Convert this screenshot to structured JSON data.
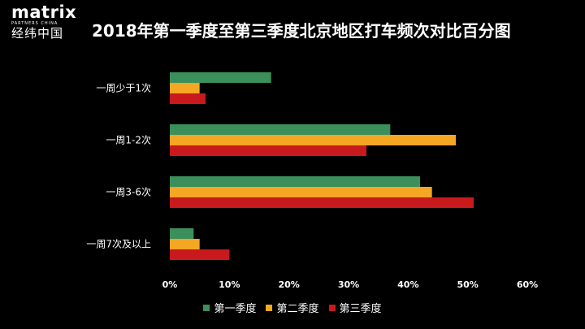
{
  "logo": {
    "word": "matrix",
    "sub": "PARTNERS CHINA",
    "cn": "经纬中国"
  },
  "chart_data": {
    "type": "bar",
    "orientation": "horizontal",
    "title": "2018年第一季度至第三季度北京地区打车频次对比百分图",
    "categories": [
      "一周少于1次",
      "一周1-2次",
      "一周3-6次",
      "一周7次及以上"
    ],
    "series": [
      {
        "name": "第一季度",
        "color": "#3b8f5a",
        "values": [
          17,
          37,
          42,
          4
        ]
      },
      {
        "name": "第二季度",
        "color": "#f5a623",
        "values": [
          5,
          48,
          44,
          5
        ]
      },
      {
        "name": "第三季度",
        "color": "#c8191c",
        "values": [
          6,
          33,
          51,
          10
        ]
      }
    ],
    "xlim": [
      0,
      60
    ],
    "xticks": [
      "0%",
      "10%",
      "20%",
      "30%",
      "40%",
      "50%",
      "60%"
    ],
    "xlabel": "",
    "ylabel": "",
    "grid": false,
    "legend_position": "bottom"
  }
}
